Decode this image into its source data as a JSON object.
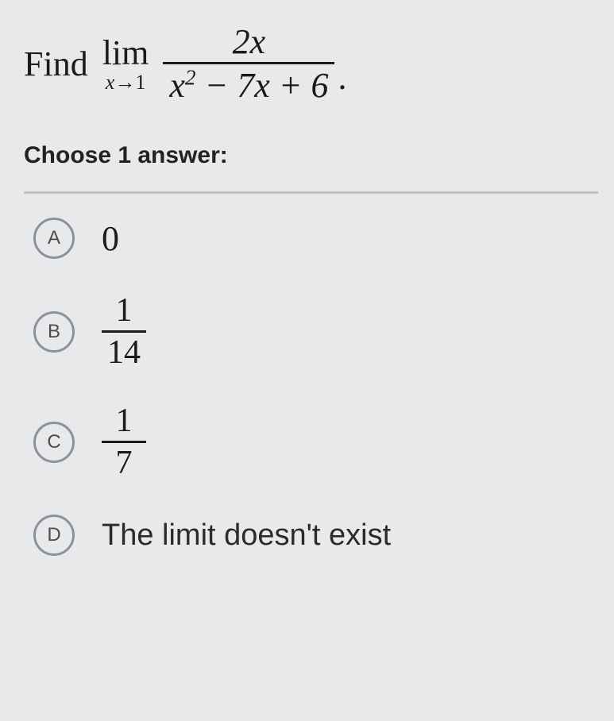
{
  "question": {
    "lead": "Find",
    "lim_label": "lim",
    "lim_sub_var": "x",
    "lim_sub_arrow": "→",
    "lim_sub_target": "1",
    "numerator": "2x",
    "denominator_html": "x<span class=\"sup\">2</span> − 7x + 6",
    "trailing": "."
  },
  "choose_label": "Choose 1 answer:",
  "options": {
    "a": {
      "letter": "A",
      "value": "0"
    },
    "b": {
      "letter": "B",
      "num": "1",
      "den": "14"
    },
    "c": {
      "letter": "C",
      "num": "1",
      "den": "7"
    },
    "d": {
      "letter": "D",
      "text": "The limit doesn't exist"
    }
  },
  "colors": {
    "background": "#e8e9eb",
    "text": "#1b1b1b",
    "bubble_border": "#8d929a",
    "divider": "#bfc2c6"
  }
}
